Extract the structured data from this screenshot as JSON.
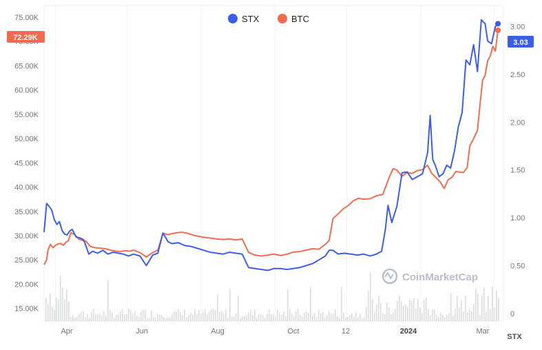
{
  "chart_data": {
    "type": "line",
    "x_labels": [
      "Apr",
      "Jun",
      "Aug",
      "Oct",
      "12",
      "2024",
      "Mar"
    ],
    "x_labels_bold": [
      "2024"
    ],
    "left_axis": {
      "ticks": [
        "15.00K",
        "20.00K",
        "25.00K",
        "30.00K",
        "35.00K",
        "40.00K",
        "45.00K",
        "50.00K",
        "55.00K",
        "60.00K",
        "65.00K",
        "70.00K",
        "75.00K"
      ],
      "values": [
        15000,
        20000,
        25000,
        30000,
        35000,
        40000,
        45000,
        50000,
        55000,
        60000,
        65000,
        70000,
        75000
      ],
      "ylim": [
        12400,
        77400
      ]
    },
    "right_axis": {
      "ticks": [
        "0",
        "0.50",
        "1.00",
        "1.50",
        "2.00",
        "2.50",
        "3.00"
      ],
      "values": [
        0,
        0.5,
        1.0,
        1.5,
        2.0,
        2.5,
        3.0
      ],
      "ylim": [
        -0.08,
        3.22
      ],
      "unit_label": "STX"
    },
    "legend": [
      "STX",
      "BTC"
    ],
    "badges": {
      "btc_last": "72.29K",
      "stx_last": "3.03"
    },
    "watermark": "CoinMarketCap",
    "colors": {
      "stx": "#3b5de7",
      "btc": "#f26b4f",
      "volume": "#d8dbe0",
      "badge_btc": "#f26b4f",
      "badge_stx": "#3b5de7"
    },
    "series": [
      {
        "name": "BTC",
        "axis": "left",
        "points": [
          [
            0,
            24000
          ],
          [
            0.02,
            25000
          ],
          [
            0.03,
            27000
          ],
          [
            0.05,
            28200
          ],
          [
            0.07,
            27500
          ],
          [
            0.09,
            28000
          ],
          [
            0.11,
            28300
          ],
          [
            0.13,
            28400
          ],
          [
            0.15,
            28000
          ],
          [
            0.17,
            28600
          ],
          [
            0.19,
            29000
          ],
          [
            0.21,
            30600
          ],
          [
            0.24,
            30200
          ],
          [
            0.27,
            29300
          ],
          [
            0.3,
            29000
          ],
          [
            0.33,
            28800
          ],
          [
            0.36,
            27800
          ],
          [
            0.4,
            27500
          ],
          [
            0.44,
            27400
          ],
          [
            0.48,
            27300
          ],
          [
            0.52,
            27000
          ],
          [
            0.56,
            26800
          ],
          [
            0.6,
            26700
          ],
          [
            0.63,
            26900
          ],
          [
            0.67,
            26800
          ],
          [
            0.7,
            27000
          ],
          [
            0.75,
            26500
          ],
          [
            0.8,
            25600
          ],
          [
            0.85,
            26500
          ],
          [
            0.89,
            27000
          ],
          [
            0.93,
            30500
          ],
          [
            0.97,
            30200
          ],
          [
            1.0,
            30400
          ],
          [
            1.04,
            30600
          ],
          [
            1.08,
            30700
          ],
          [
            1.12,
            30500
          ],
          [
            1.18,
            30000
          ],
          [
            1.22,
            29800
          ],
          [
            1.26,
            29600
          ],
          [
            1.3,
            29500
          ],
          [
            1.35,
            29300
          ],
          [
            1.4,
            29200
          ],
          [
            1.45,
            29300
          ],
          [
            1.5,
            29100
          ],
          [
            1.55,
            29300
          ],
          [
            1.6,
            26500
          ],
          [
            1.65,
            26000
          ],
          [
            1.7,
            25800
          ],
          [
            1.75,
            26000
          ],
          [
            1.8,
            26200
          ],
          [
            1.85,
            25900
          ],
          [
            1.9,
            26200
          ],
          [
            1.95,
            26600
          ],
          [
            2.0,
            26700
          ],
          [
            2.05,
            27000
          ],
          [
            2.1,
            27300
          ],
          [
            2.15,
            27200
          ],
          [
            2.2,
            28200
          ],
          [
            2.23,
            29000
          ],
          [
            2.26,
            33500
          ],
          [
            2.3,
            34500
          ],
          [
            2.34,
            35500
          ],
          [
            2.38,
            36200
          ],
          [
            2.42,
            37200
          ],
          [
            2.46,
            37700
          ],
          [
            2.5,
            37500
          ],
          [
            2.55,
            37600
          ],
          [
            2.6,
            38200
          ],
          [
            2.65,
            38500
          ],
          [
            2.7,
            42000
          ],
          [
            2.73,
            43800
          ],
          [
            2.76,
            43500
          ],
          [
            2.8,
            42200
          ],
          [
            2.84,
            43000
          ],
          [
            2.88,
            42800
          ],
          [
            2.92,
            43400
          ],
          [
            2.96,
            43600
          ],
          [
            3.0,
            44500
          ],
          [
            3.03,
            42900
          ],
          [
            3.06,
            42100
          ],
          [
            3.1,
            41000
          ],
          [
            3.13,
            39700
          ],
          [
            3.16,
            41500
          ],
          [
            3.19,
            42000
          ],
          [
            3.22,
            43200
          ],
          [
            3.25,
            43100
          ],
          [
            3.28,
            43000
          ],
          [
            3.31,
            44000
          ],
          [
            3.33,
            48500
          ],
          [
            3.36,
            50000
          ],
          [
            3.39,
            51700
          ],
          [
            3.41,
            57000
          ],
          [
            3.43,
            62000
          ],
          [
            3.45,
            63000
          ],
          [
            3.47,
            66000
          ],
          [
            3.49,
            67000
          ],
          [
            3.51,
            69000
          ],
          [
            3.53,
            68000
          ],
          [
            3.55,
            72290
          ]
        ]
      },
      {
        "name": "STX",
        "axis": "right",
        "points": [
          [
            0,
            0.85
          ],
          [
            0.02,
            1.15
          ],
          [
            0.04,
            1.12
          ],
          [
            0.06,
            1.08
          ],
          [
            0.08,
            0.98
          ],
          [
            0.1,
            0.93
          ],
          [
            0.12,
            0.96
          ],
          [
            0.14,
            0.87
          ],
          [
            0.16,
            0.83
          ],
          [
            0.18,
            0.82
          ],
          [
            0.2,
            0.86
          ],
          [
            0.22,
            0.88
          ],
          [
            0.25,
            0.8
          ],
          [
            0.28,
            0.79
          ],
          [
            0.31,
            0.77
          ],
          [
            0.35,
            0.62
          ],
          [
            0.38,
            0.65
          ],
          [
            0.42,
            0.63
          ],
          [
            0.46,
            0.66
          ],
          [
            0.5,
            0.62
          ],
          [
            0.54,
            0.64
          ],
          [
            0.58,
            0.63
          ],
          [
            0.62,
            0.62
          ],
          [
            0.66,
            0.6
          ],
          [
            0.7,
            0.62
          ],
          [
            0.75,
            0.6
          ],
          [
            0.8,
            0.5
          ],
          [
            0.85,
            0.61
          ],
          [
            0.89,
            0.63
          ],
          [
            0.93,
            0.84
          ],
          [
            0.97,
            0.75
          ],
          [
            1.0,
            0.73
          ],
          [
            1.05,
            0.74
          ],
          [
            1.1,
            0.71
          ],
          [
            1.15,
            0.7
          ],
          [
            1.2,
            0.68
          ],
          [
            1.25,
            0.66
          ],
          [
            1.3,
            0.64
          ],
          [
            1.35,
            0.63
          ],
          [
            1.4,
            0.62
          ],
          [
            1.45,
            0.64
          ],
          [
            1.5,
            0.63
          ],
          [
            1.55,
            0.62
          ],
          [
            1.6,
            0.48
          ],
          [
            1.65,
            0.47
          ],
          [
            1.7,
            0.46
          ],
          [
            1.75,
            0.45
          ],
          [
            1.8,
            0.47
          ],
          [
            1.85,
            0.47
          ],
          [
            1.9,
            0.46
          ],
          [
            1.95,
            0.47
          ],
          [
            2.0,
            0.48
          ],
          [
            2.05,
            0.5
          ],
          [
            2.1,
            0.52
          ],
          [
            2.15,
            0.56
          ],
          [
            2.2,
            0.6
          ],
          [
            2.23,
            0.66
          ],
          [
            2.26,
            0.66
          ],
          [
            2.3,
            0.62
          ],
          [
            2.35,
            0.63
          ],
          [
            2.4,
            0.62
          ],
          [
            2.45,
            0.61
          ],
          [
            2.5,
            0.62
          ],
          [
            2.55,
            0.6
          ],
          [
            2.6,
            0.62
          ],
          [
            2.64,
            0.65
          ],
          [
            2.67,
            0.88
          ],
          [
            2.69,
            1.13
          ],
          [
            2.72,
            0.95
          ],
          [
            2.76,
            1.12
          ],
          [
            2.8,
            1.47
          ],
          [
            2.84,
            1.48
          ],
          [
            2.88,
            1.4
          ],
          [
            2.92,
            1.43
          ],
          [
            2.96,
            1.46
          ],
          [
            3.0,
            1.68
          ],
          [
            3.02,
            2.07
          ],
          [
            3.04,
            1.61
          ],
          [
            3.06,
            1.55
          ],
          [
            3.09,
            1.43
          ],
          [
            3.12,
            1.46
          ],
          [
            3.15,
            1.55
          ],
          [
            3.18,
            1.52
          ],
          [
            3.21,
            1.7
          ],
          [
            3.24,
            1.95
          ],
          [
            3.27,
            2.1
          ],
          [
            3.3,
            2.65
          ],
          [
            3.33,
            2.6
          ],
          [
            3.36,
            2.81
          ],
          [
            3.39,
            2.53
          ],
          [
            3.42,
            3.07
          ],
          [
            3.45,
            3.03
          ],
          [
            3.47,
            2.85
          ],
          [
            3.5,
            2.82
          ],
          [
            3.53,
            3.0
          ],
          [
            3.55,
            3.03
          ]
        ]
      }
    ]
  }
}
